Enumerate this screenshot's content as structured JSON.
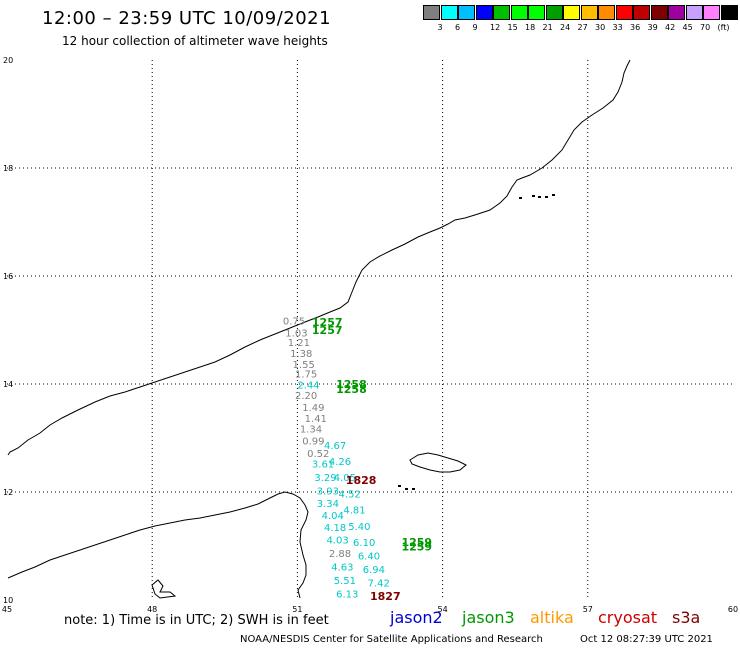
{
  "header": {
    "title": "12:00 – 23:59 UTC 10/09/2021",
    "subtitle": "12 hour collection of altimeter wave heights"
  },
  "colorbar": {
    "colors": [
      "#7f7f7f",
      "#00ffff",
      "#00bfff",
      "#0000ff",
      "#00bf00",
      "#00ff00",
      "#00ff00",
      "#009f00",
      "#ffff00",
      "#ffbf00",
      "#ff8c00",
      "#ff0000",
      "#bf0000",
      "#7f0000",
      "#9f009f",
      "#c8a0ff",
      "#ff80ff",
      "#000000"
    ],
    "labels": [
      "3",
      "6",
      "9",
      "12",
      "15",
      "18",
      "21",
      "24",
      "27",
      "30",
      "33",
      "36",
      "39",
      "42",
      "45",
      "70",
      "(ft)"
    ]
  },
  "axes": {
    "lon_ticks": [
      "45",
      "48",
      "51",
      "54",
      "57",
      "60"
    ],
    "lat_ticks": [
      "20",
      "18",
      "16",
      "14",
      "12",
      "10"
    ],
    "lon_range": [
      45,
      60
    ],
    "lat_range": [
      10,
      20
    ]
  },
  "track_times": [
    {
      "text": "1257",
      "lon": 51.3,
      "lat": 15.07,
      "color": "#009900"
    },
    {
      "text": "1257",
      "lon": 51.3,
      "lat": 14.93,
      "color": "#009900"
    },
    {
      "text": "1258",
      "lon": 51.8,
      "lat": 13.93,
      "color": "#009900"
    },
    {
      "text": "1258",
      "lon": 51.8,
      "lat": 13.83,
      "color": "#009900"
    },
    {
      "text": "1828",
      "lon": 52.0,
      "lat": 12.15,
      "color": "#7f0000"
    },
    {
      "text": "1259",
      "lon": 53.15,
      "lat": 11.0,
      "color": "#009900"
    },
    {
      "text": "1259",
      "lon": 53.15,
      "lat": 10.92,
      "color": "#009900"
    },
    {
      "text": "1827",
      "lon": 52.5,
      "lat": 10.0,
      "color": "#7f0000"
    }
  ],
  "wave_heights": [
    {
      "text": "0.75",
      "lon": 50.7,
      "lat": 15.1,
      "color": "#808080"
    },
    {
      "text": "1.03",
      "lon": 50.75,
      "lat": 14.88,
      "color": "#808080"
    },
    {
      "text": "1.21",
      "lon": 50.8,
      "lat": 14.7,
      "color": "#808080"
    },
    {
      "text": "1.38",
      "lon": 50.85,
      "lat": 14.5,
      "color": "#808080"
    },
    {
      "text": "1.55",
      "lon": 50.9,
      "lat": 14.3,
      "color": "#808080"
    },
    {
      "text": "1.75",
      "lon": 50.95,
      "lat": 14.12,
      "color": "#808080"
    },
    {
      "text": "2.44",
      "lon": 51.0,
      "lat": 13.92,
      "color": "#00c8c8"
    },
    {
      "text": "2.20",
      "lon": 50.95,
      "lat": 13.72,
      "color": "#808080"
    },
    {
      "text": "1.49",
      "lon": 51.1,
      "lat": 13.5,
      "color": "#808080"
    },
    {
      "text": "1.41",
      "lon": 51.15,
      "lat": 13.3,
      "color": "#808080"
    },
    {
      "text": "1.34",
      "lon": 51.05,
      "lat": 13.1,
      "color": "#808080"
    },
    {
      "text": "0.99",
      "lon": 51.1,
      "lat": 12.88,
      "color": "#808080"
    },
    {
      "text": "0.52",
      "lon": 51.2,
      "lat": 12.65,
      "color": "#808080"
    },
    {
      "text": "3.61",
      "lon": 51.3,
      "lat": 12.45,
      "color": "#00c8c8"
    },
    {
      "text": "3.29",
      "lon": 51.35,
      "lat": 12.2,
      "color": "#00c8c8"
    },
    {
      "text": "3.93",
      "lon": 51.4,
      "lat": 11.95,
      "color": "#00c8c8"
    },
    {
      "text": "3.34",
      "lon": 51.4,
      "lat": 11.72,
      "color": "#00c8c8"
    },
    {
      "text": "4.04",
      "lon": 51.5,
      "lat": 11.5,
      "color": "#00c8c8"
    },
    {
      "text": "4.18",
      "lon": 51.55,
      "lat": 11.28,
      "color": "#00c8c8"
    },
    {
      "text": "4.03",
      "lon": 51.6,
      "lat": 11.05,
      "color": "#00c8c8"
    },
    {
      "text": "2.88",
      "lon": 51.65,
      "lat": 10.8,
      "color": "#808080"
    },
    {
      "text": "4.63",
      "lon": 51.7,
      "lat": 10.55,
      "color": "#00c8c8"
    },
    {
      "text": "5.51",
      "lon": 51.75,
      "lat": 10.3,
      "color": "#00c8c8"
    },
    {
      "text": "6.13",
      "lon": 51.8,
      "lat": 10.05,
      "color": "#00c8c8"
    },
    {
      "text": "4.67",
      "lon": 51.55,
      "lat": 12.8,
      "color": "#00c8c8"
    },
    {
      "text": "4.26",
      "lon": 51.65,
      "lat": 12.5,
      "color": "#00c8c8"
    },
    {
      "text": "4.05",
      "lon": 51.75,
      "lat": 12.2,
      "color": "#00c8c8"
    },
    {
      "text": "4.52",
      "lon": 51.85,
      "lat": 11.9,
      "color": "#00c8c8"
    },
    {
      "text": "4.81",
      "lon": 51.95,
      "lat": 11.6,
      "color": "#00c8c8"
    },
    {
      "text": "5.40",
      "lon": 52.05,
      "lat": 11.3,
      "color": "#00c8c8"
    },
    {
      "text": "6.10",
      "lon": 52.15,
      "lat": 11.0,
      "color": "#00c8c8"
    },
    {
      "text": "6.40",
      "lon": 52.25,
      "lat": 10.75,
      "color": "#00c8c8"
    },
    {
      "text": "6.94",
      "lon": 52.35,
      "lat": 10.5,
      "color": "#00c8c8"
    },
    {
      "text": "7.42",
      "lon": 52.45,
      "lat": 10.25,
      "color": "#00c8c8"
    }
  ],
  "note": "note:  1) Time is in UTC;  2) SWH is in feet",
  "legend": [
    {
      "label": "jason2",
      "color": "#0000cc"
    },
    {
      "label": "jason3",
      "color": "#009900"
    },
    {
      "label": "altika",
      "color": "#ff9900"
    },
    {
      "label": "cryosat",
      "color": "#cc0000"
    },
    {
      "label": "s3a",
      "color": "#7f0000"
    }
  ],
  "footer": {
    "left": "NOAA/NESDIS Center for Satellite Applications and Research",
    "right": "Oct 12 08:27:39 UTC 2021"
  }
}
